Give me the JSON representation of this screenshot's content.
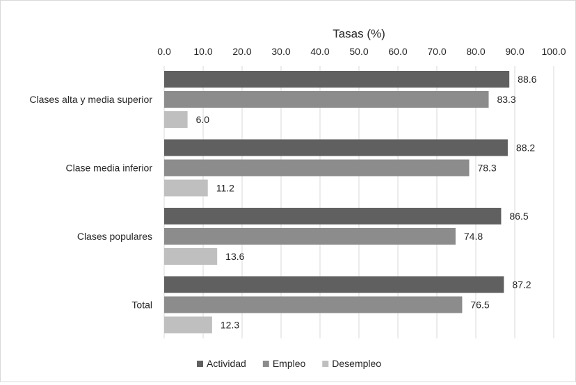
{
  "chart_data": {
    "type": "bar",
    "orientation": "horizontal",
    "title": "Tasas (%)",
    "xlim": [
      0,
      100
    ],
    "xticks": [
      "0.0",
      "10.0",
      "20.0",
      "30.0",
      "40.0",
      "50.0",
      "60.0",
      "70.0",
      "80.0",
      "90.0",
      "100.0"
    ],
    "grid": true,
    "legend_position": "bottom",
    "categories": [
      "Clases alta y media superior",
      "Clase media inferior",
      "Clases populares",
      "Total"
    ],
    "series": [
      {
        "name": "Actividad",
        "color": "#606060",
        "values": [
          88.6,
          88.2,
          86.5,
          87.2
        ],
        "labels": [
          "88.6",
          "88.2",
          "86.5",
          "87.2"
        ]
      },
      {
        "name": "Empleo",
        "color": "#8c8c8c",
        "values": [
          83.3,
          78.3,
          74.8,
          76.5
        ],
        "labels": [
          "83.3",
          "78.3",
          "74.8",
          "76.5"
        ]
      },
      {
        "name": "Desempleo",
        "color": "#bfbfbf",
        "values": [
          6.0,
          11.2,
          13.6,
          12.3
        ],
        "labels": [
          "6.0",
          "11.2",
          "13.6",
          "12.3"
        ]
      }
    ]
  }
}
